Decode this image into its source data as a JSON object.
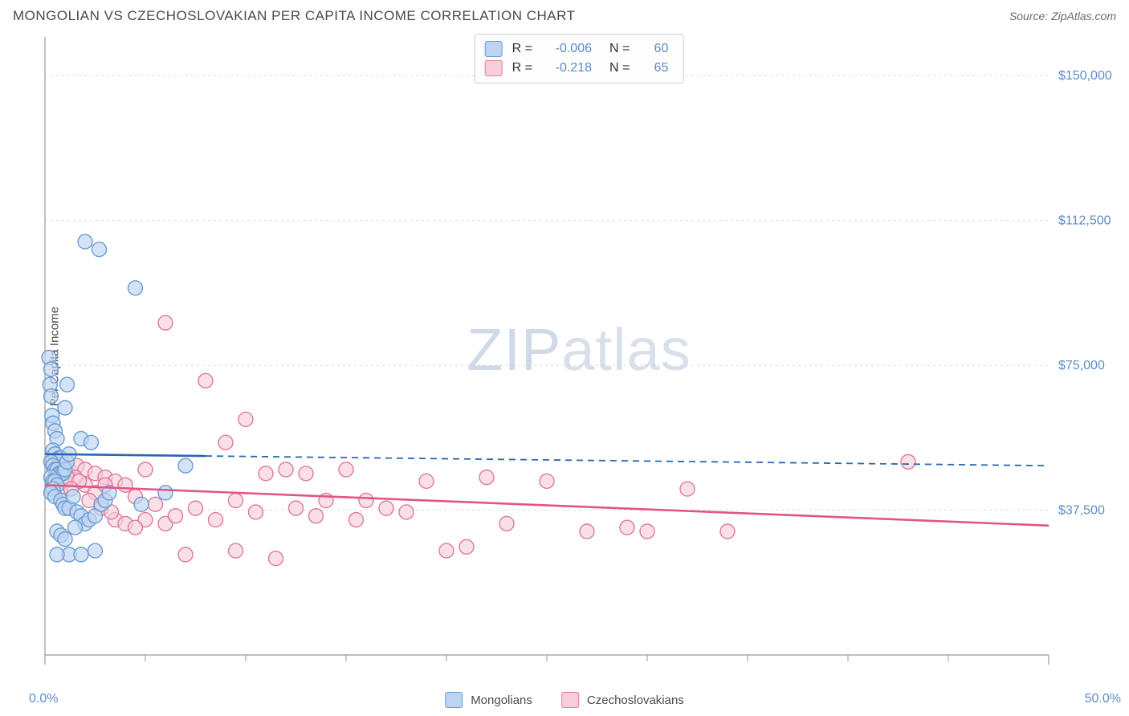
{
  "header": {
    "title": "MONGOLIAN VS CZECHOSLOVAKIAN PER CAPITA INCOME CORRELATION CHART",
    "source": "Source: ZipAtlas.com"
  },
  "watermark": {
    "bold": "ZIP",
    "light": "atlas"
  },
  "chart": {
    "type": "scatter",
    "ylabel": "Per Capita Income",
    "x_min": 0.0,
    "x_max": 50.0,
    "y_min": 0,
    "y_max": 160000,
    "x_tick_start_label": "0.0%",
    "x_tick_end_label": "50.0%",
    "x_minor_ticks": [
      5,
      10,
      15,
      20,
      25,
      30,
      35,
      40,
      45
    ],
    "y_ticks": [
      {
        "v": 37500,
        "label": "$37,500"
      },
      {
        "v": 75000,
        "label": "$75,000"
      },
      {
        "v": 112500,
        "label": "$112,500"
      },
      {
        "v": 150000,
        "label": "$150,000"
      }
    ],
    "background_color": "#ffffff",
    "grid_color": "#d9d9d9",
    "axis_color": "#9a9a9a",
    "label_color": "#5a8cc9",
    "series": [
      {
        "name": "Mongolians",
        "fill": "#bcd4ef",
        "stroke": "#6a9cd4",
        "line": "#2a66b1",
        "r_label": "R =",
        "r_value": "-0.006",
        "n_label": "N =",
        "n_value": "60",
        "trend": {
          "solid_to_x": 8.0,
          "y_start": 52000,
          "y_end": 49000
        },
        "points": [
          [
            0.2,
            77000
          ],
          [
            0.3,
            74000
          ],
          [
            0.25,
            70000
          ],
          [
            0.3,
            67000
          ],
          [
            0.35,
            62000
          ],
          [
            0.4,
            60000
          ],
          [
            0.5,
            58000
          ],
          [
            0.6,
            56000
          ],
          [
            0.4,
            53000
          ],
          [
            0.5,
            52000
          ],
          [
            0.7,
            51000
          ],
          [
            0.8,
            51000
          ],
          [
            0.3,
            50000
          ],
          [
            0.4,
            49000
          ],
          [
            0.5,
            48000
          ],
          [
            0.6,
            48000
          ],
          [
            0.7,
            47000
          ],
          [
            0.8,
            47000
          ],
          [
            0.9,
            47000
          ],
          [
            1.0,
            48000
          ],
          [
            1.1,
            50000
          ],
          [
            1.2,
            52000
          ],
          [
            0.3,
            46000
          ],
          [
            0.4,
            45000
          ],
          [
            0.5,
            45000
          ],
          [
            0.6,
            44000
          ],
          [
            0.4,
            43000
          ],
          [
            0.3,
            42000
          ],
          [
            0.5,
            41000
          ],
          [
            0.8,
            40000
          ],
          [
            0.9,
            39000
          ],
          [
            1.0,
            38000
          ],
          [
            1.2,
            38000
          ],
          [
            1.4,
            41000
          ],
          [
            1.6,
            37000
          ],
          [
            1.8,
            36000
          ],
          [
            2.0,
            34000
          ],
          [
            2.2,
            35000
          ],
          [
            2.5,
            36000
          ],
          [
            2.8,
            39000
          ],
          [
            3.0,
            40000
          ],
          [
            3.2,
            42000
          ],
          [
            0.6,
            32000
          ],
          [
            0.8,
            31000
          ],
          [
            1.0,
            30000
          ],
          [
            1.5,
            33000
          ],
          [
            1.2,
            26000
          ],
          [
            1.8,
            26000
          ],
          [
            2.5,
            27000
          ],
          [
            0.6,
            26000
          ],
          [
            6.0,
            42000
          ],
          [
            7.0,
            49000
          ],
          [
            4.5,
            95000
          ],
          [
            2.0,
            107000
          ],
          [
            2.7,
            105000
          ],
          [
            1.1,
            70000
          ],
          [
            1.0,
            64000
          ],
          [
            1.8,
            56000
          ],
          [
            2.3,
            55000
          ],
          [
            4.8,
            39000
          ]
        ]
      },
      {
        "name": "Czechoslovakians",
        "fill": "#f6cfda",
        "stroke": "#e07a9a",
        "line": "#e25586",
        "r_label": "R =",
        "r_value": "-0.218",
        "n_label": "N =",
        "n_value": "65",
        "trend": {
          "solid_to_x": 50.0,
          "y_start": 44000,
          "y_end": 33500
        },
        "points": [
          [
            0.4,
            50000
          ],
          [
            0.8,
            49000
          ],
          [
            1.2,
            48000
          ],
          [
            1.6,
            49000
          ],
          [
            2.0,
            48000
          ],
          [
            2.5,
            47000
          ],
          [
            3.0,
            46000
          ],
          [
            3.5,
            45000
          ],
          [
            4.0,
            44000
          ],
          [
            5.0,
            48000
          ],
          [
            6.0,
            86000
          ],
          [
            8.0,
            71000
          ],
          [
            7.5,
            38000
          ],
          [
            9.0,
            55000
          ],
          [
            9.5,
            40000
          ],
          [
            10.0,
            61000
          ],
          [
            10.5,
            37000
          ],
          [
            11.0,
            47000
          ],
          [
            11.5,
            25000
          ],
          [
            12.0,
            48000
          ],
          [
            12.5,
            38000
          ],
          [
            13.0,
            47000
          ],
          [
            13.5,
            36000
          ],
          [
            14.0,
            40000
          ],
          [
            15.0,
            48000
          ],
          [
            15.5,
            35000
          ],
          [
            16.0,
            40000
          ],
          [
            17.0,
            38000
          ],
          [
            18.0,
            37000
          ],
          [
            19.0,
            45000
          ],
          [
            20.0,
            27000
          ],
          [
            21.0,
            28000
          ],
          [
            22.0,
            46000
          ],
          [
            23.0,
            34000
          ],
          [
            25.0,
            45000
          ],
          [
            27.0,
            32000
          ],
          [
            29.0,
            33000
          ],
          [
            30.0,
            32000
          ],
          [
            32.0,
            43000
          ],
          [
            34.0,
            32000
          ],
          [
            43.0,
            50000
          ],
          [
            4.5,
            41000
          ],
          [
            5.0,
            35000
          ],
          [
            5.5,
            39000
          ],
          [
            6.0,
            34000
          ],
          [
            6.5,
            36000
          ],
          [
            7.0,
            26000
          ],
          [
            8.5,
            35000
          ],
          [
            9.5,
            27000
          ],
          [
            3.5,
            35000
          ],
          [
            4.0,
            34000
          ],
          [
            4.5,
            33000
          ],
          [
            2.0,
            44000
          ],
          [
            2.5,
            42000
          ],
          [
            3.0,
            44000
          ],
          [
            1.0,
            45000
          ],
          [
            1.5,
            46000
          ],
          [
            2.2,
            40000
          ],
          [
            2.8,
            38000
          ],
          [
            3.3,
            37000
          ],
          [
            0.6,
            47000
          ],
          [
            1.1,
            46000
          ],
          [
            1.7,
            45000
          ],
          [
            0.8,
            42000
          ],
          [
            1.3,
            43000
          ]
        ]
      }
    ],
    "legend": {
      "series1": "Mongolians",
      "series2": "Czechoslovakians"
    }
  }
}
